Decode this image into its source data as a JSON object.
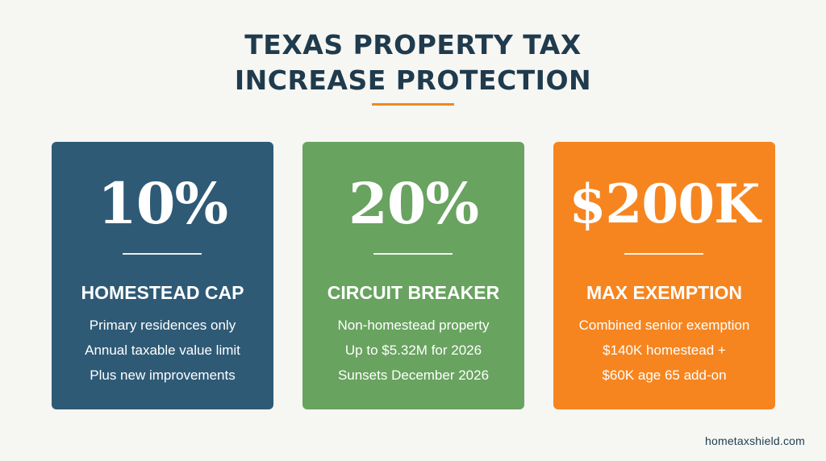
{
  "title": {
    "line1": "TEXAS PROPERTY TAX",
    "line2": "INCREASE PROTECTION"
  },
  "colors": {
    "background": "#f6f6f3",
    "title": "#1f3b4d",
    "accent": "#ef8a1f",
    "card_blue": "#2e5a76",
    "card_green": "#68a35f",
    "card_orange": "#f6851f"
  },
  "cards": [
    {
      "value": "10%",
      "label": "HOMESTEAD CAP",
      "lines": [
        "Primary residences only",
        "Annual taxable value limit",
        "Plus new improvements"
      ]
    },
    {
      "value": "20%",
      "label": "CIRCUIT BREAKER",
      "lines": [
        "Non-homestead property",
        "Up to $5.32M for 2026",
        "Sunsets December 2026"
      ]
    },
    {
      "value": "$200K",
      "label": "MAX EXEMPTION",
      "lines": [
        "Combined senior exemption",
        "$140K homestead +",
        "$60K age 65 add-on"
      ]
    }
  ],
  "footer": {
    "site": "hometaxshield.com"
  }
}
